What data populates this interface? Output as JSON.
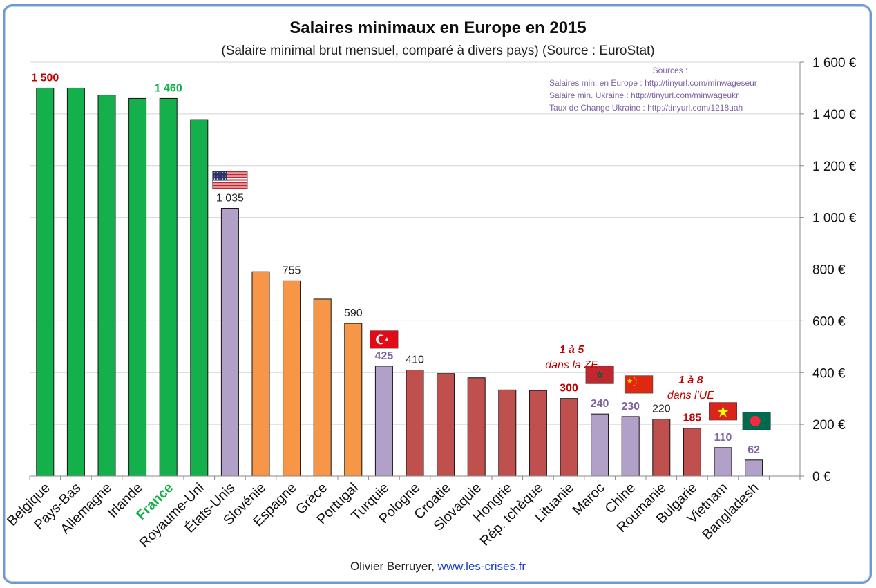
{
  "chart_data": {
    "type": "bar",
    "title": "Salaires minimaux en Europe en 2015",
    "subtitle": "(Salaire minimal brut mensuel, comparé à divers pays) (Source : EuroStat)",
    "y_axis": {
      "position": "right",
      "ylim": [
        0,
        1600
      ],
      "ticks": [
        0,
        200,
        400,
        600,
        800,
        1000,
        1200,
        1400,
        1600
      ],
      "tick_labels": [
        "0 €",
        "200 €",
        "400 €",
        "600 €",
        "800 €",
        "1 000 €",
        "1 200 €",
        "1 400 €",
        "1 600 €"
      ]
    },
    "grid": true,
    "categories": [
      "Belgique",
      "Pays-Bas",
      "Allemagne",
      "Irlande",
      "France",
      "Royaume-Uni",
      "États-Unis",
      "Slovénie",
      "Espagne",
      "Grèce",
      "Portugal",
      "Turquie",
      "Pologne",
      "Croatie",
      "Slovaquie",
      "Hongrie",
      "Rép. tchèque",
      "Lituanie",
      "Maroc",
      "Chine",
      "Roumanie",
      "Bulgarie",
      "Vietnam",
      "Bangladesh"
    ],
    "values": [
      1500,
      1500,
      1473,
      1460,
      1460,
      1378,
      1035,
      790,
      755,
      684,
      590,
      425,
      410,
      396,
      380,
      333,
      331,
      300,
      240,
      230,
      220,
      185,
      110,
      62
    ],
    "bar_colors": [
      "#13b04b",
      "#13b04b",
      "#13b04b",
      "#13b04b",
      "#13b04b",
      "#13b04b",
      "#b1a0c7",
      "#f79646",
      "#f79646",
      "#f79646",
      "#f79646",
      "#b1a0c7",
      "#c0504d",
      "#c0504d",
      "#c0504d",
      "#c0504d",
      "#c0504d",
      "#c0504d",
      "#b1a0c7",
      "#b1a0c7",
      "#c0504d",
      "#c0504d",
      "#b1a0c7",
      "#b1a0c7"
    ],
    "highlight_category": "France",
    "highlight_color": "#13b04b",
    "data_labels": [
      {
        "index": 0,
        "text": "1 500",
        "color": "#c00000",
        "bold": true
      },
      {
        "index": 4,
        "text": "1 460",
        "color": "#13b04b",
        "bold": true
      },
      {
        "index": 6,
        "text": "1 035",
        "color": "#222222",
        "bold": false
      },
      {
        "index": 8,
        "text": "755",
        "color": "#222222",
        "bold": false
      },
      {
        "index": 10,
        "text": "590",
        "color": "#222222",
        "bold": false
      },
      {
        "index": 11,
        "text": "425",
        "color": "#8064a2",
        "bold": true
      },
      {
        "index": 12,
        "text": "410",
        "color": "#222222",
        "bold": false
      },
      {
        "index": 17,
        "text": "300",
        "color": "#c00000",
        "bold": true
      },
      {
        "index": 18,
        "text": "240",
        "color": "#8064a2",
        "bold": true
      },
      {
        "index": 19,
        "text": "230",
        "color": "#8064a2",
        "bold": true
      },
      {
        "index": 20,
        "text": "220",
        "color": "#222222",
        "bold": false
      },
      {
        "index": 21,
        "text": "185",
        "color": "#c00000",
        "bold": true
      },
      {
        "index": 22,
        "text": "110",
        "color": "#8064a2",
        "bold": true
      },
      {
        "index": 23,
        "text": "62",
        "color": "#8064a2",
        "bold": true
      }
    ],
    "flags": [
      {
        "index": 6,
        "icon": "us-flag-icon"
      },
      {
        "index": 11,
        "icon": "turkey-flag-icon"
      },
      {
        "index": 18,
        "icon": "morocco-flag-icon"
      },
      {
        "index": 19,
        "icon": "china-flag-icon"
      },
      {
        "index": 22,
        "icon": "vietnam-flag-icon"
      },
      {
        "index": 23,
        "icon": "bangladesh-flag-icon"
      }
    ],
    "annotations": [
      {
        "id": "ratio-ze",
        "lines": [
          "1 à 5",
          "dans la ZE"
        ],
        "color": "#c00000"
      },
      {
        "id": "ratio-ue",
        "lines": [
          "1 à 8",
          "dans l'UE"
        ],
        "color": "#c00000"
      }
    ],
    "sources": {
      "heading": "Sources :",
      "lines": [
        "Salaires min. en Europe :  http://tinyurl.com/minwageseur",
        "Salaire min. Ukraine : http://tinyurl.com/minwageukr",
        "Taux de Change Ukraine : http://tinyurl.com/1218uah"
      ],
      "color": "#8064a2"
    }
  },
  "credit": {
    "author": "Olivier Berruyer,",
    "link_text": "www.les-crises.fr"
  }
}
